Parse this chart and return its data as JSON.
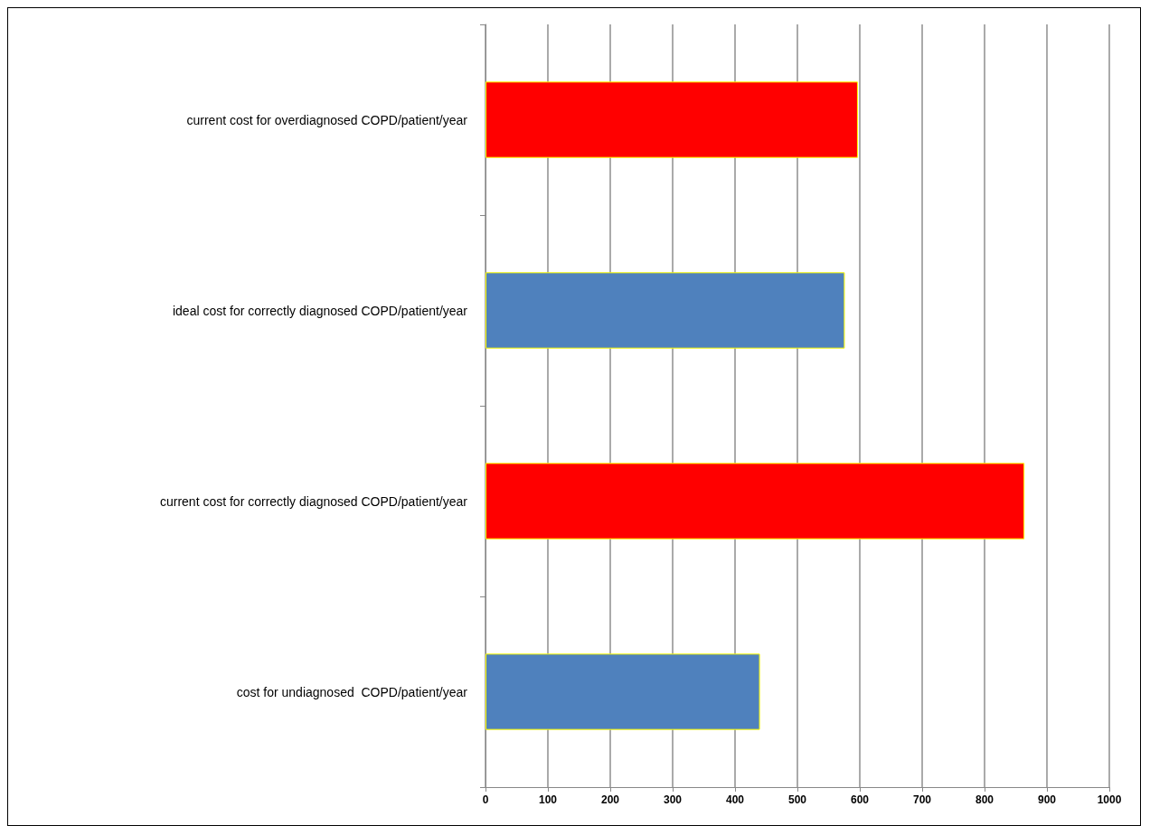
{
  "chart_data": {
    "type": "bar",
    "orientation": "horizontal",
    "categories": [
      "current cost for overdiagnosed COPD/patient/year",
      "ideal cost for correctly diagnosed COPD/patient/year",
      "current cost for correctly diagnosed COPD/patient/year",
      "cost for undiagnosed  COPD/patient/year"
    ],
    "values": [
      597,
      576,
      864,
      440
    ],
    "colors": [
      "#ff0000",
      "#4f81bd",
      "#ff0000",
      "#4f81bd"
    ],
    "xlim": [
      0,
      1000
    ],
    "xticks": [
      0,
      100,
      200,
      300,
      400,
      500,
      600,
      700,
      800,
      900,
      1000
    ],
    "grid": "x"
  }
}
